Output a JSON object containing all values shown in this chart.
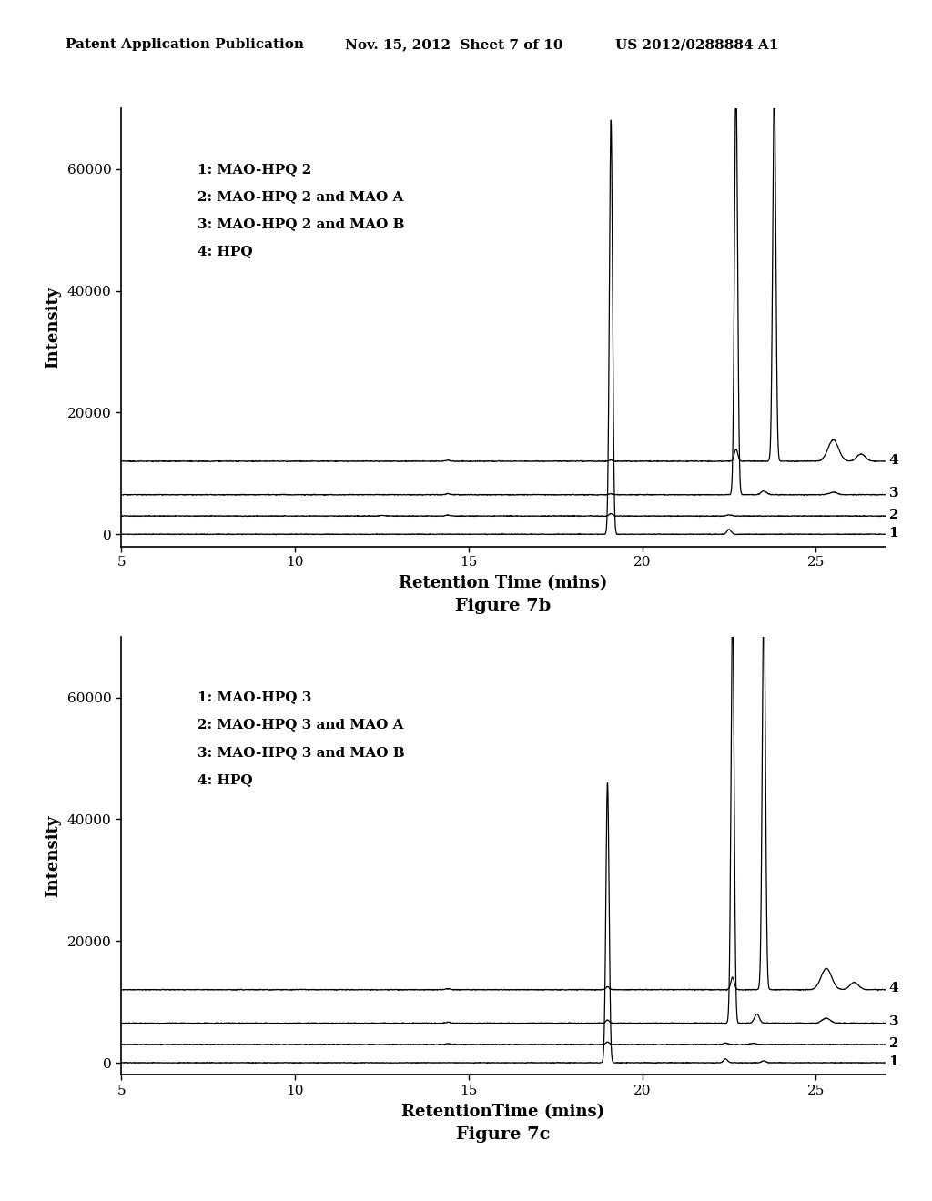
{
  "header_left": "Patent Application Publication",
  "header_mid": "Nov. 15, 2012  Sheet 7 of 10",
  "header_right": "US 2012/0288884 A1",
  "fig7b": {
    "title": "Figure 7b",
    "xlabel": "Retention Time (mins)",
    "ylabel": "Intensity",
    "xlim": [
      5,
      27
    ],
    "ylim": [
      -2000,
      70000
    ],
    "yticks": [
      0,
      20000,
      40000,
      60000
    ],
    "xticks": [
      5,
      10,
      15,
      20,
      25
    ],
    "legend_lines": [
      "1: MAO-HPQ 2",
      "2: MAO-HPQ 2 and MAO A",
      "3: MAO-HPQ 2 and MAO B",
      "4: HPQ"
    ],
    "baselines": [
      0,
      3000,
      6500,
      12000
    ]
  },
  "fig7c": {
    "title": "Figure 7c",
    "xlabel": "RetentionTime (mins)",
    "ylabel": "Intensity",
    "xlim": [
      5,
      27
    ],
    "ylim": [
      -2000,
      70000
    ],
    "yticks": [
      0,
      20000,
      40000,
      60000
    ],
    "xticks": [
      5,
      10,
      15,
      20,
      25
    ],
    "legend_lines": [
      "1: MAO-HPQ 3",
      "2: MAO-HPQ 3 and MAO A",
      "3: MAO-HPQ 3 and MAO B",
      "4: HPQ"
    ],
    "baselines": [
      0,
      3000,
      6500,
      12000
    ]
  },
  "line_color": "#000000",
  "bg_color": "#ffffff",
  "font_size_header": 11,
  "font_size_axis_label": 13,
  "font_size_tick": 11,
  "font_size_legend": 10,
  "font_size_fig_title": 14
}
